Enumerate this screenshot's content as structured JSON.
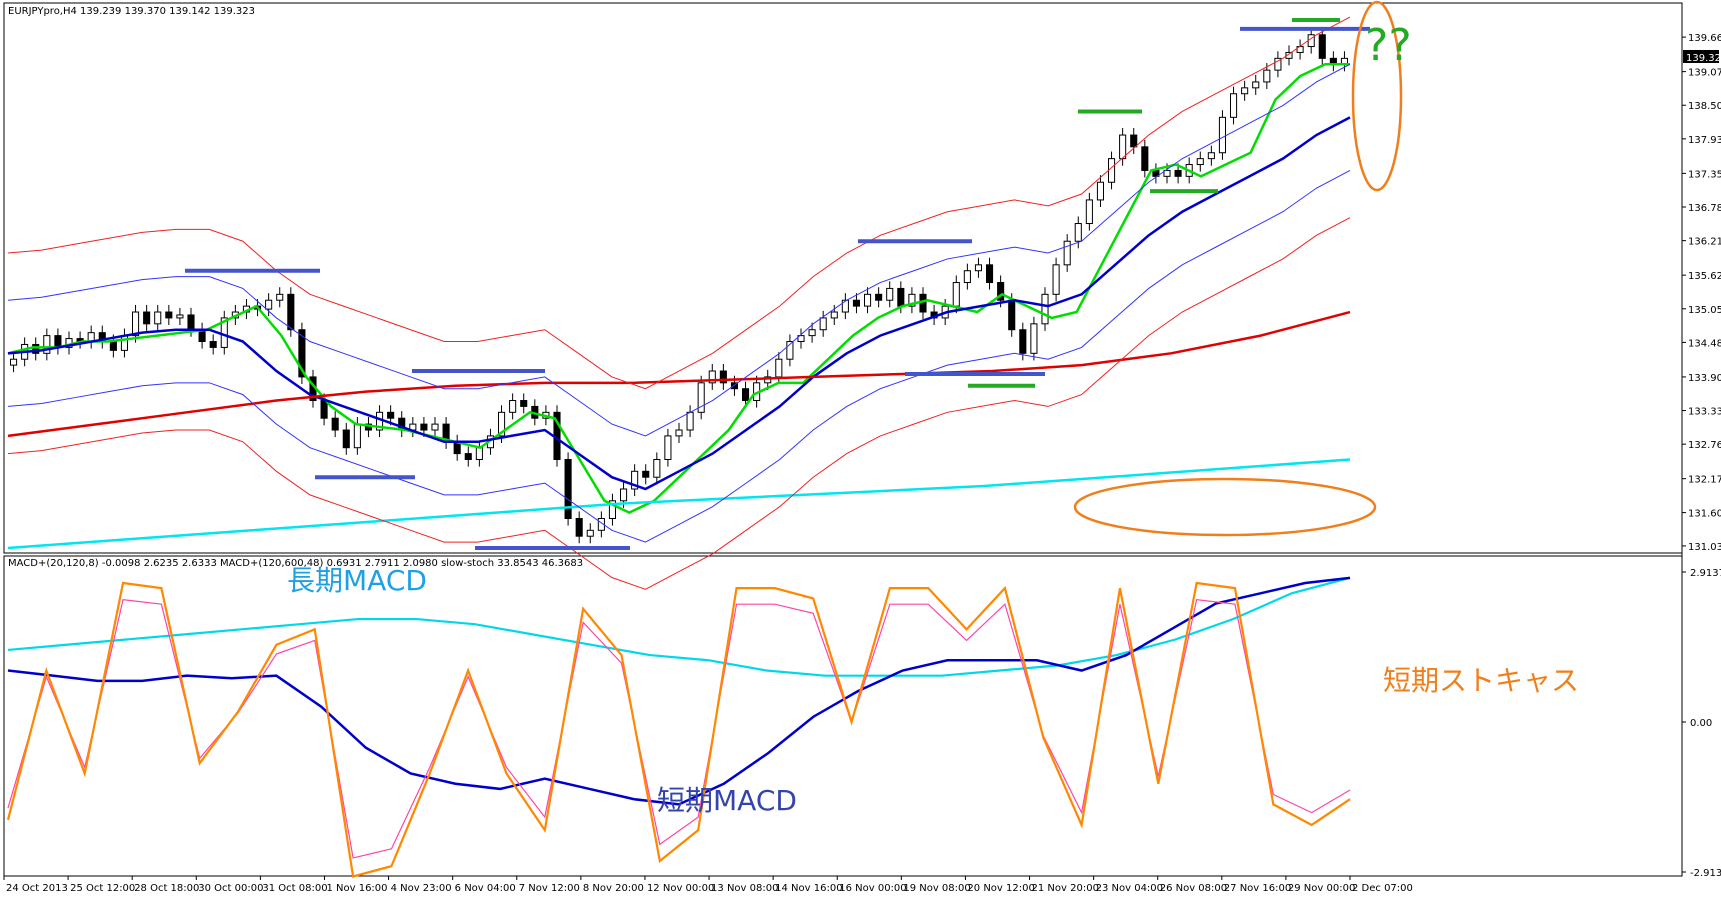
{
  "header": {
    "main_info": "EURJPYpro,H4  139.239 139.370 139.142 139.323",
    "sub_info": "MACD+(20,120,8) -0.0098 2.6235 2.6333  MACD+(120,600,48) 0.6931 2.7911 2.0980  slow-stoch 33.8543 46.3683"
  },
  "price_axis": {
    "ticks": [
      "139.660",
      "139.075",
      "138.505",
      "137.935",
      "137.350",
      "136.780",
      "136.210",
      "135.625",
      "135.055",
      "134.485",
      "133.900",
      "133.330",
      "132.760",
      "132.175",
      "131.600",
      "131.035"
    ],
    "current_price": "139.323"
  },
  "indicator_axis": {
    "ticks": [
      "2.9137",
      "0.00",
      "-2.9137"
    ]
  },
  "time_axis": {
    "labels": [
      "24 Oct 2013",
      "25 Oct 12:00",
      "28 Oct 18:00",
      "30 Oct 00:00",
      "31 Oct 08:00",
      "1 Nov 16:00",
      "4 Nov 23:00",
      "6 Nov 04:00",
      "7 Nov 12:00",
      "8 Nov 20:00",
      "12 Nov 00:00",
      "13 Nov 08:00",
      "14 Nov 16:00",
      "16 Nov 00:00",
      "19 Nov 08:00",
      "20 Nov 12:00",
      "21 Nov 20:00",
      "23 Nov 04:00",
      "26 Nov 08:00",
      "27 Nov 16:00",
      "29 Nov 00:00",
      "2 Dec 07:00"
    ]
  },
  "annotations": {
    "question": "??",
    "long_macd": "長期MACD",
    "short_macd": "短期MACD",
    "short_stoch": "短期ストキャス"
  },
  "colors": {
    "candle_up": "#ffffff",
    "candle_down": "#000000",
    "ema_fast": "#00dd00",
    "ema_mid": "#0000cc",
    "ema_long": "#e00000",
    "ema_very_long": "#00e5ee",
    "bollinger_blue": "#3333ff",
    "envelope_red": "#ee2222",
    "level_blue": "#4455cc",
    "level_green": "#22aa22",
    "highlight": "#f07f1b",
    "stoch_main": "#ff8800",
    "stoch_signal": "#ff44aa",
    "macd_short": "#0000cc",
    "macd_long": "#00d8e8",
    "annotation_blue": "#1ea0e6",
    "annotation_navy": "#3344aa",
    "annotation_green": "#22aa22"
  },
  "chart_data": {
    "type": "candlestick",
    "symbol": "EURJPYpro",
    "timeframe": "H4",
    "ohlc_last": {
      "open": 139.239,
      "high": 139.37,
      "low": 139.142,
      "close": 139.323
    },
    "ylim": [
      131.0,
      139.95
    ],
    "close_series": [
      134.2,
      134.45,
      134.3,
      134.6,
      134.4,
      134.55,
      134.5,
      134.65,
      134.5,
      134.35,
      134.6,
      135.0,
      134.8,
      135.0,
      134.9,
      134.95,
      134.7,
      134.5,
      134.4,
      134.9,
      135.0,
      135.1,
      135.05,
      135.2,
      135.3,
      134.7,
      133.9,
      133.5,
      133.2,
      133.0,
      132.7,
      133.1,
      133.0,
      133.3,
      133.2,
      133.0,
      133.1,
      133.0,
      133.1,
      132.8,
      132.6,
      132.5,
      132.7,
      132.9,
      133.3,
      133.5,
      133.4,
      133.2,
      133.3,
      132.5,
      131.5,
      131.2,
      131.3,
      131.5,
      131.8,
      132.0,
      132.3,
      132.2,
      132.5,
      132.9,
      133.0,
      133.3,
      133.8,
      134.0,
      133.8,
      133.7,
      133.5,
      133.8,
      133.9,
      134.2,
      134.5,
      134.6,
      134.7,
      134.9,
      135.0,
      135.2,
      135.1,
      135.3,
      135.2,
      135.4,
      135.1,
      135.3,
      135.0,
      134.9,
      135.1,
      135.5,
      135.7,
      135.8,
      135.5,
      135.2,
      134.7,
      134.3,
      134.8,
      135.3,
      135.8,
      136.2,
      136.5,
      136.9,
      137.2,
      137.6,
      138.0,
      137.8,
      137.4,
      137.3,
      137.4,
      137.3,
      137.5,
      137.6,
      137.7,
      138.3,
      138.7,
      138.8,
      138.9,
      139.1,
      139.3,
      139.4,
      139.5,
      139.7,
      139.3,
      139.2,
      139.3
    ],
    "overlays": [
      {
        "name": "EMA fast",
        "values": [
          134.3,
          134.4,
          134.4,
          134.5,
          134.5,
          134.55,
          134.6,
          134.65,
          134.7,
          134.9,
          135.1,
          134.6,
          133.9,
          133.4,
          133.1,
          133.05,
          133.0,
          132.9,
          132.8,
          132.7,
          133.0,
          133.3,
          133.2,
          132.5,
          131.8,
          131.6,
          131.8,
          132.2,
          132.6,
          133.0,
          133.6,
          133.8,
          133.8,
          134.2,
          134.6,
          134.9,
          135.1,
          135.2,
          135.1,
          135.0,
          135.3,
          135.1,
          134.9,
          135.0,
          135.8,
          136.6,
          137.4,
          137.5,
          137.3,
          137.5,
          137.7,
          138.6,
          139.0,
          139.2,
          139.2
        ]
      },
      {
        "name": "EMA mid",
        "values": [
          134.3,
          134.35,
          134.45,
          134.55,
          134.65,
          134.7,
          134.7,
          134.5,
          134.0,
          133.6,
          133.4,
          133.2,
          133.0,
          132.8,
          132.8,
          132.9,
          133.0,
          132.6,
          132.2,
          132.0,
          132.3,
          132.6,
          133.0,
          133.4,
          133.9,
          134.3,
          134.6,
          134.8,
          135.0,
          135.1,
          135.2,
          135.1,
          135.3,
          135.8,
          136.3,
          136.7,
          137.0,
          137.3,
          137.6,
          138.0,
          138.3
        ]
      },
      {
        "name": "EMA long",
        "values": [
          132.9,
          133.1,
          133.3,
          133.5,
          133.65,
          133.75,
          133.8,
          133.8,
          133.85,
          133.9,
          133.95,
          134.0,
          134.1,
          134.3,
          134.6,
          135.0
        ]
      },
      {
        "name": "EMA very long",
        "values": [
          131.0,
          131.15,
          131.3,
          131.45,
          131.6,
          131.75,
          131.85,
          131.95,
          132.05,
          132.2,
          132.35,
          132.5
        ]
      }
    ],
    "levels": [
      {
        "color": "blue",
        "price": 135.7
      },
      {
        "color": "blue",
        "price": 134.0
      },
      {
        "color": "blue",
        "price": 132.2
      },
      {
        "color": "blue",
        "price": 131.0
      },
      {
        "color": "blue",
        "price": 136.2
      },
      {
        "color": "blue",
        "price": 133.95
      },
      {
        "color": "green",
        "price": 138.4
      },
      {
        "color": "green",
        "price": 137.05
      },
      {
        "color": "green",
        "price": 133.75
      },
      {
        "color": "blue",
        "price": 139.8
      },
      {
        "color": "green",
        "price": 139.95
      }
    ],
    "indicator": {
      "ylim": [
        -2.9137,
        2.9137
      ],
      "macd_short": [
        1.0,
        0.9,
        0.8,
        0.8,
        0.9,
        0.85,
        0.9,
        0.3,
        -0.5,
        -1.0,
        -1.2,
        -1.3,
        -1.1,
        -1.3,
        -1.5,
        -1.6,
        -1.2,
        -0.6,
        0.1,
        0.6,
        1.0,
        1.2,
        1.2,
        1.2,
        1.0,
        1.3,
        1.8,
        2.3,
        2.5,
        2.7,
        2.8
      ],
      "macd_long": [
        1.4,
        1.5,
        1.6,
        1.7,
        1.8,
        1.9,
        2.0,
        2.0,
        1.9,
        1.7,
        1.5,
        1.3,
        1.2,
        1.0,
        0.9,
        0.9,
        0.9,
        1.0,
        1.1,
        1.3,
        1.6,
        2.0,
        2.5,
        2.8
      ],
      "stoch_main": [
        -1.9,
        1.0,
        -1.0,
        2.7,
        2.6,
        -0.8,
        0.2,
        1.5,
        1.8,
        -3.0,
        -2.8,
        -1.0,
        1.0,
        -1.0,
        -2.1,
        2.2,
        1.3,
        -2.7,
        -2.1,
        2.6,
        2.6,
        2.4,
        0.0,
        2.6,
        2.6,
        1.8,
        2.6,
        -0.3,
        -2.0,
        2.6,
        -1.2,
        2.7,
        2.6,
        -1.6,
        -2.0,
        -1.5
      ]
    }
  }
}
